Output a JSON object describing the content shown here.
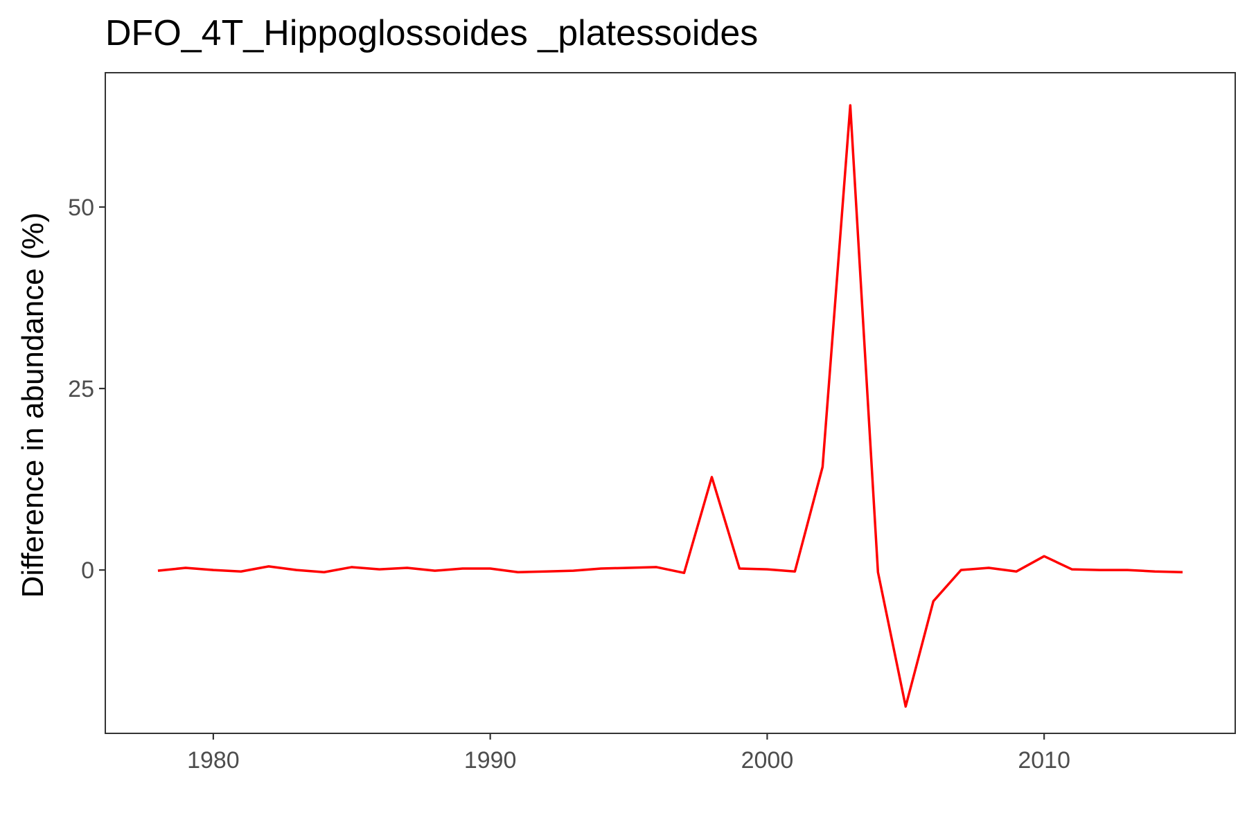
{
  "chart_data": {
    "type": "line",
    "title": "DFO_4T_Hippoglossoides _platessoides",
    "xlabel": "",
    "ylabel": "Difference in abundance (%)",
    "xlim": [
      1976.1,
      2016.9
    ],
    "ylim": [
      -22.5,
      68.5
    ],
    "x_ticks": [
      1980,
      1990,
      2000,
      2010
    ],
    "y_ticks": [
      0,
      25,
      50
    ],
    "x_tick_labels": [
      "1980",
      "1990",
      "2000",
      "2010"
    ],
    "y_tick_labels": [
      "0",
      "25",
      "50"
    ],
    "grid": false,
    "legend": "none",
    "series": [
      {
        "color": "#ff0000",
        "x": [
          1978,
          1979,
          1980,
          1981,
          1982,
          1983,
          1984,
          1985,
          1986,
          1987,
          1988,
          1989,
          1990,
          1991,
          1992,
          1993,
          1994,
          1995,
          1996,
          1997,
          1998,
          1999,
          2000,
          2001,
          2002,
          2003,
          2004,
          2005,
          2006,
          2007,
          2008,
          2009,
          2010,
          2011,
          2012,
          2013,
          2014,
          2015
        ],
        "values": [
          -0.1,
          0.3,
          0.0,
          -0.2,
          0.5,
          0.0,
          -0.3,
          0.4,
          0.1,
          0.3,
          -0.1,
          0.2,
          0.2,
          -0.3,
          -0.2,
          -0.1,
          0.2,
          0.3,
          0.4,
          -0.4,
          12.8,
          0.2,
          0.1,
          -0.2,
          14.2,
          64.0,
          -0.3,
          -18.8,
          -4.3,
          0.0,
          0.3,
          -0.2,
          1.9,
          0.1,
          0.0,
          0.0,
          -0.2,
          -0.3
        ]
      }
    ]
  }
}
